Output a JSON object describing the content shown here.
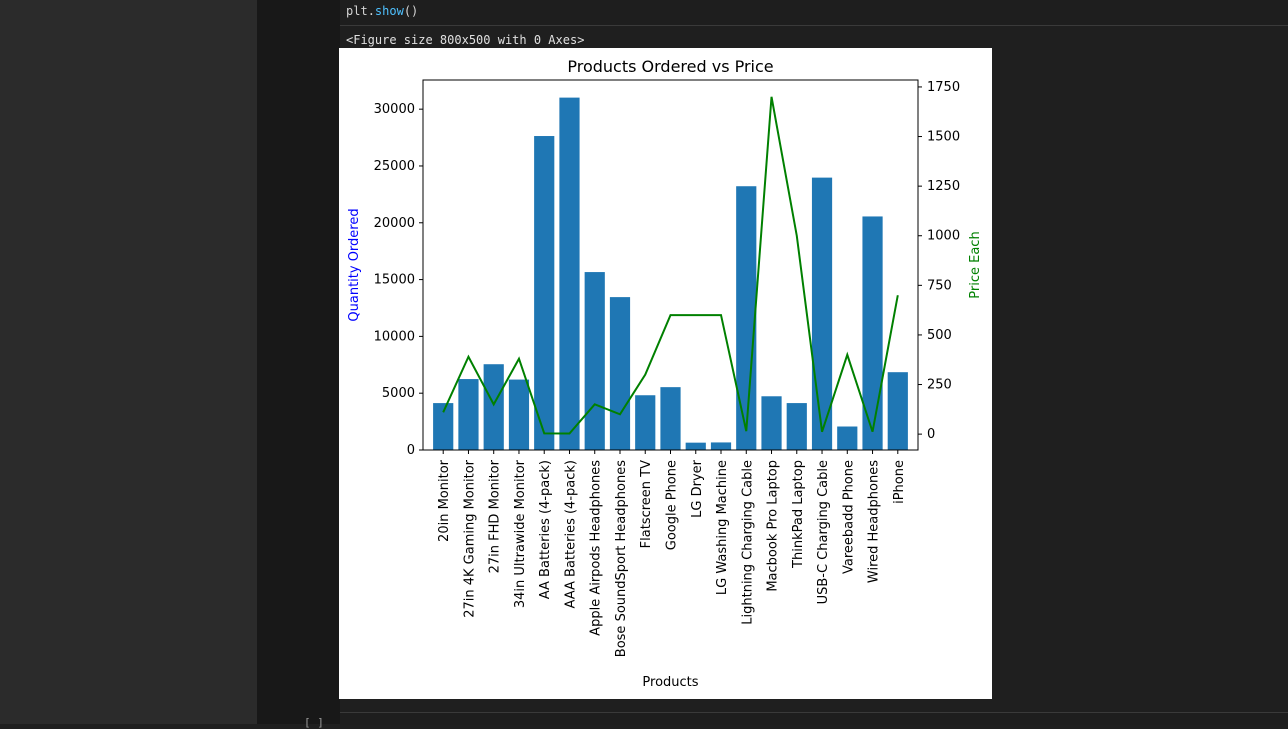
{
  "code": {
    "object": "plt",
    "method": "show",
    "call": "()"
  },
  "output_text": "<Figure size 800x500 with 0 Axes>",
  "next_cell_prompt": "[ ]",
  "chart_data": {
    "type": "bar",
    "title": "Products Ordered vs Price",
    "xlabel": "Products",
    "ylabel": "Quantity Ordered",
    "y2label": "Price Each",
    "categories": [
      "20in Monitor",
      "27in 4K Gaming Monitor",
      "27in FHD Monitor",
      "34in Ultrawide Monitor",
      "AA Batteries (4-pack)",
      "AAA Batteries (4-pack)",
      "Apple Airpods Headphones",
      "Bose SoundSport Headphones",
      "Flatscreen TV",
      "Google Phone",
      "LG Dryer",
      "LG Washing Machine",
      "Lightning Charging Cable",
      "Macbook Pro Laptop",
      "ThinkPad Laptop",
      "USB-C Charging Cable",
      "Vareebadd Phone",
      "Wired Headphones",
      "iPhone"
    ],
    "series": [
      {
        "type": "bar",
        "values": [
          4129,
          6244,
          7550,
          6199,
          27635,
          31017,
          15661,
          13457,
          4819,
          5532,
          646,
          666,
          23217,
          4728,
          4130,
          23975,
          2068,
          20557,
          6849
        ]
      },
      {
        "type": "line",
        "axis": "right",
        "values": [
          109.99,
          389.99,
          149.99,
          379.99,
          3.84,
          2.99,
          150.0,
          99.99,
          300.0,
          600.0,
          600.0,
          600.0,
          14.95,
          1700.0,
          999.99,
          11.95,
          400.0,
          11.99,
          700.0
        ]
      }
    ],
    "ylim": [
      0,
      32567
    ],
    "y2lim": [
      -80,
      1785
    ],
    "yticks": [
      0,
      5000,
      10000,
      15000,
      20000,
      25000,
      30000
    ],
    "y2ticks": [
      0,
      250,
      500,
      750,
      1000,
      1250,
      1500,
      1750
    ],
    "colors": {
      "bars": "#1f77b4",
      "line": "#008000",
      "ylabel": "#0000ff",
      "y2label": "#008000"
    },
    "grid": false
  }
}
